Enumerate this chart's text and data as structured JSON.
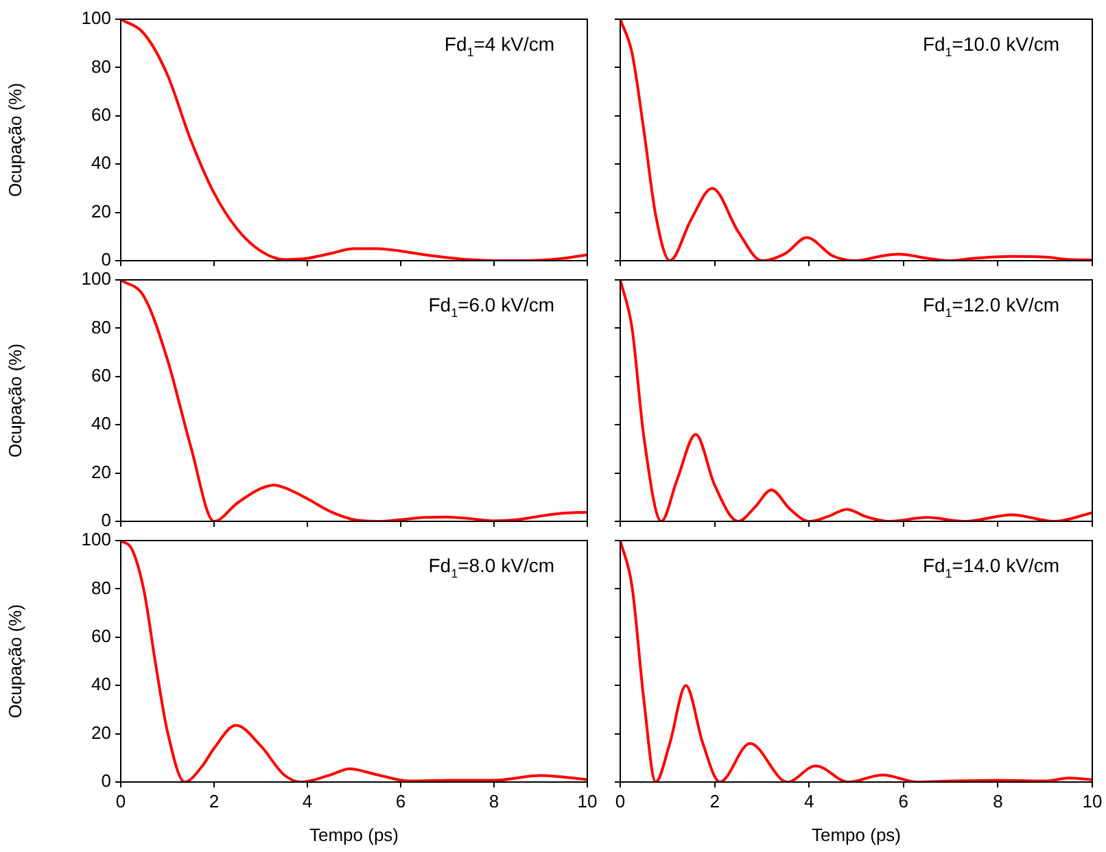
{
  "chart_data": [
    {
      "type": "line",
      "ylabel": "Ocupação (%)",
      "annotations": [
        "Fd$_{1}$=4 kV/cm"
      ],
      "xlim": [
        0,
        10
      ],
      "ylim": [
        0,
        100
      ],
      "xticks": [
        0,
        2,
        4,
        6,
        8,
        10
      ],
      "yticks": [
        0,
        20,
        40,
        60,
        80,
        100
      ],
      "tick_labels": "y",
      "marker": "none",
      "line_style": "solid",
      "x": [
        0,
        0.5,
        1,
        1.5,
        2,
        2.5,
        3,
        3.5,
        4,
        4.5,
        5,
        5.5,
        6,
        6.5,
        7,
        7.5,
        8,
        8.5,
        9,
        9.5,
        10
      ],
      "series": [
        {
          "color": "#ff0000",
          "values": [
            100,
            94,
            77,
            50,
            28,
            13,
            4,
            0.5,
            1,
            3,
            5,
            5,
            4,
            2.5,
            1.3,
            0.4,
            0,
            0,
            0.2,
            1,
            2.4
          ]
        }
      ]
    },
    {
      "type": "line",
      "annotations": [
        "Fd$_{1}$=10.0 kV/cm"
      ],
      "xlim": [
        0,
        10
      ],
      "ylim": [
        0,
        100
      ],
      "xticks": [
        0,
        2,
        4,
        6,
        8,
        10
      ],
      "yticks": [
        0,
        20,
        40,
        60,
        80,
        100
      ],
      "tick_labels": false,
      "marker": "none",
      "line_style": "solid",
      "x": [
        0,
        0.25,
        0.5,
        0.75,
        1.05,
        1.5,
        1.95,
        2.5,
        3,
        3.5,
        3.95,
        4.5,
        5,
        5.5,
        5.9,
        6.5,
        7,
        7.5,
        8.3,
        9,
        9.5,
        10
      ],
      "series": [
        {
          "color": "#ff0000",
          "values": [
            100,
            86,
            54,
            19,
            0,
            17,
            30,
            12,
            0,
            3,
            9.6,
            2,
            0,
            1.8,
            2.7,
            1,
            0,
            1,
            1.8,
            1.5,
            0.5,
            0.3
          ]
        }
      ]
    },
    {
      "type": "line",
      "ylabel": "Ocupação (%)",
      "annotations": [
        "Fd$_{1}$=6.0 kV/cm"
      ],
      "xlim": [
        0,
        10
      ],
      "ylim": [
        0,
        100
      ],
      "xticks": [
        0,
        2,
        4,
        6,
        8,
        10
      ],
      "yticks": [
        0,
        20,
        40,
        60,
        80,
        100
      ],
      "tick_labels": "y",
      "marker": "none",
      "line_style": "solid",
      "x": [
        0,
        0.5,
        1,
        1.5,
        2,
        2.5,
        3,
        3.3,
        3.5,
        4,
        4.5,
        5,
        5.5,
        6,
        6.5,
        7,
        7.5,
        8,
        8.5,
        9,
        9.5,
        10
      ],
      "series": [
        {
          "color": "#ff0000",
          "values": [
            100,
            93,
            67,
            31,
            0,
            7.6,
            13.6,
            15,
            14,
            9.4,
            4,
            0.7,
            0,
            0.7,
            1.6,
            1.8,
            1.1,
            0.2,
            0.7,
            2.2,
            3.4,
            3.8
          ]
        }
      ]
    },
    {
      "type": "line",
      "annotations": [
        "Fd$_{1}$=12.0 kV/cm"
      ],
      "xlim": [
        0,
        10
      ],
      "ylim": [
        0,
        100
      ],
      "xticks": [
        0,
        2,
        4,
        6,
        8,
        10
      ],
      "yticks": [
        0,
        20,
        40,
        60,
        80,
        100
      ],
      "tick_labels": false,
      "marker": "none",
      "line_style": "solid",
      "x": [
        0,
        0.25,
        0.5,
        0.87,
        1.2,
        1.6,
        2,
        2.5,
        2.85,
        3.2,
        3.6,
        4,
        4.4,
        4.8,
        5.2,
        5.7,
        6.5,
        7.3,
        8.3,
        9.2,
        10
      ],
      "series": [
        {
          "color": "#ff0000",
          "values": [
            100,
            80,
            35,
            0,
            17,
            36,
            15,
            0,
            5.8,
            13,
            5,
            0,
            2,
            5,
            2,
            0,
            1.6,
            0,
            2.7,
            0,
            3.6
          ]
        }
      ]
    },
    {
      "type": "line",
      "xlabel": "Tempo (ps)",
      "ylabel": "Ocupação (%)",
      "annotations": [
        "Fd$_{1}$=8.0 kV/cm"
      ],
      "xlim": [
        0,
        10
      ],
      "ylim": [
        0,
        100
      ],
      "xticks": [
        0,
        2,
        4,
        6,
        8,
        10
      ],
      "yticks": [
        0,
        20,
        40,
        60,
        80,
        100
      ],
      "marker": "none",
      "line_style": "solid",
      "x": [
        0,
        0.25,
        0.5,
        0.75,
        1,
        1.37,
        1.75,
        2,
        2.47,
        3,
        3.5,
        3.87,
        4.5,
        4.9,
        5.5,
        6.2,
        7,
        8,
        9,
        10
      ],
      "series": [
        {
          "color": "#ff0000",
          "values": [
            100,
            96,
            79,
            48.5,
            21,
            0,
            6.7,
            14,
            23.5,
            15,
            3,
            0,
            3,
            5.5,
            3,
            0.4,
            0.7,
            0.7,
            2.7,
            1
          ]
        }
      ]
    },
    {
      "type": "line",
      "xlabel": "Tempo (ps)",
      "annotations": [
        "Fd$_{1}$=14.0 kV/cm"
      ],
      "xlim": [
        0,
        10
      ],
      "ylim": [
        0,
        100
      ],
      "xticks": [
        0,
        2,
        4,
        6,
        8,
        10
      ],
      "yticks": [
        0,
        20,
        40,
        60,
        80,
        100
      ],
      "tick_labels": "x",
      "marker": "none",
      "line_style": "solid",
      "x": [
        0,
        0.25,
        0.5,
        0.75,
        1.05,
        1.39,
        1.75,
        2.11,
        2.75,
        3.54,
        4.14,
        4.83,
        5.56,
        6.3,
        7,
        8,
        9,
        9.5,
        10
      ],
      "series": [
        {
          "color": "#ff0000",
          "values": [
            100,
            81,
            34,
            0,
            16,
            40,
            16,
            0,
            16,
            0,
            6.7,
            0,
            2.9,
            0,
            0.4,
            0.7,
            0.4,
            1.6,
            1
          ]
        }
      ]
    }
  ]
}
